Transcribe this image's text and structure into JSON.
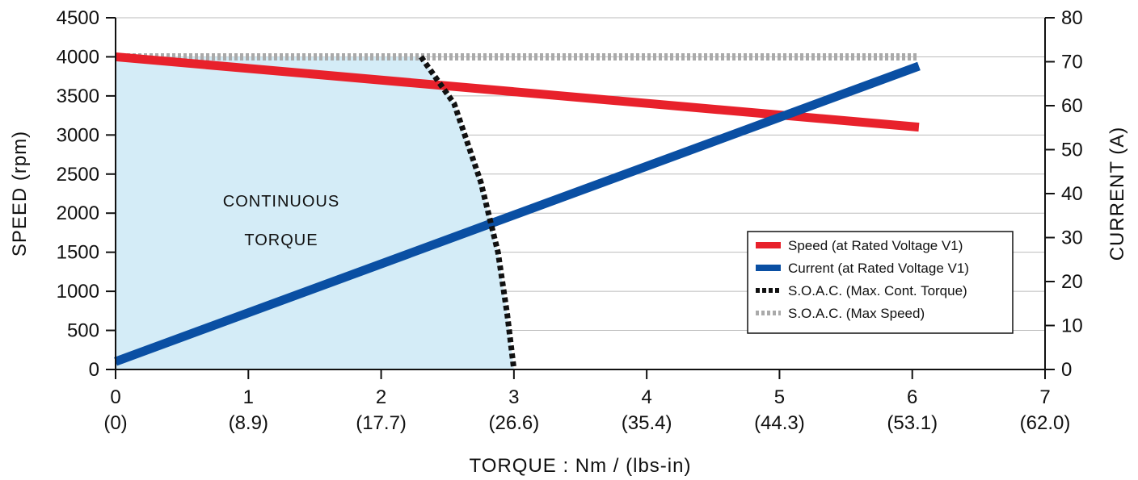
{
  "chart_data": {
    "type": "line",
    "xlabel": "TORQUE : Nm / (lbs-in)",
    "ylabel_left": "SPEED (rpm)",
    "ylabel_right": "CURRENT (A)",
    "xlim": [
      0,
      7
    ],
    "ylim_left": [
      0,
      4500
    ],
    "ylim_right": [
      0,
      80
    ],
    "x_ticks": [
      0,
      1,
      2,
      3,
      4,
      5,
      6,
      7
    ],
    "x_tick_labels_secondary": [
      "(0)",
      "(8.9)",
      "(17.7)",
      "(26.6)",
      "(35.4)",
      "(44.3)",
      "(53.1)",
      "(62.0)"
    ],
    "y_left_ticks": [
      0,
      500,
      1000,
      1500,
      2000,
      2500,
      3000,
      3500,
      4000,
      4500
    ],
    "y_right_ticks": [
      0,
      10,
      20,
      30,
      40,
      50,
      60,
      70,
      80
    ],
    "grid": "horizontal",
    "legend_position": "center-right",
    "region_label": [
      "CONTINUOUS",
      "TORQUE"
    ],
    "colors": {
      "speed": "#e8212b",
      "current": "#0a4fa3",
      "soac_torque": "#111111",
      "soac_speed": "#aaaaaa",
      "region_fill": "#d4ecf7",
      "grid": "#bbbbbb"
    },
    "series": [
      {
        "name": "Speed (at Rated  Voltage V1)",
        "axis": "left",
        "style": "solid",
        "x": [
          0,
          6.05
        ],
        "y": [
          4000,
          3100
        ]
      },
      {
        "name": "Current (at Rated Voltage V1)",
        "axis": "right",
        "style": "solid",
        "x": [
          0,
          6.05
        ],
        "y": [
          1.8,
          69
        ]
      },
      {
        "name": "S.O.A.C. (Max. Cont. Torque)",
        "axis": "left",
        "style": "dotted",
        "x": [
          2.3,
          2.55,
          2.75,
          2.88,
          2.95,
          3.0
        ],
        "y": [
          4000,
          3400,
          2400,
          1500,
          700,
          0
        ]
      },
      {
        "name": "S.O.A.C. (Max Speed)",
        "axis": "left",
        "style": "dotted",
        "x": [
          0,
          6.05
        ],
        "y": [
          4000,
          4000
        ]
      }
    ]
  }
}
